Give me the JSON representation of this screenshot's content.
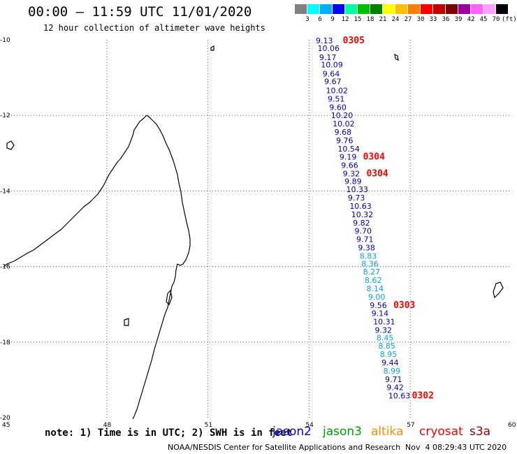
{
  "header": {
    "title": "00:00 – 11:59 UTC 11/01/2020",
    "subtitle": "12 hour collection of altimeter wave heights"
  },
  "legend": {
    "colors": [
      "#808080",
      "#00ffff",
      "#00b0ff",
      "#0000ff",
      "#00ffa0",
      "#00c000",
      "#008000",
      "#ffff00",
      "#ffc000",
      "#ff8000",
      "#ff0000",
      "#c00000",
      "#800000",
      "#a000a0",
      "#ff60ff",
      "#ffa0ff",
      "#000000"
    ],
    "labels": [
      "3",
      "6",
      "9",
      "12",
      "15",
      "18",
      "21",
      "24",
      "27",
      "30",
      "33",
      "36",
      "39",
      "42",
      "45",
      "70",
      "(ft)"
    ]
  },
  "map": {
    "lat_ticks": [
      "-10",
      "-12",
      "-14",
      "-16",
      "-18",
      "-20"
    ],
    "lon_ticks": [
      "45",
      "48",
      "51",
      "54",
      "57",
      "60"
    ],
    "lat_range": [
      -20,
      -10
    ],
    "lon_range": [
      45,
      60
    ],
    "measurements": [
      {
        "lat": -10.02,
        "lon": 54.2,
        "v": "9.13",
        "c": "#0000c0"
      },
      {
        "lat": -10.22,
        "lon": 54.25,
        "v": "10.06",
        "c": "#0000c0"
      },
      {
        "lat": -10.46,
        "lon": 54.3,
        "v": "9.17",
        "c": "#0000c0"
      },
      {
        "lat": -10.66,
        "lon": 54.35,
        "v": "10.09",
        "c": "#0000c0"
      },
      {
        "lat": -10.9,
        "lon": 54.4,
        "v": "9.64",
        "c": "#0000c0"
      },
      {
        "lat": -11.1,
        "lon": 54.45,
        "v": "9.67",
        "c": "#0000c0"
      },
      {
        "lat": -11.34,
        "lon": 54.5,
        "v": "10.02",
        "c": "#0000c0"
      },
      {
        "lat": -11.56,
        "lon": 54.55,
        "v": "9.51",
        "c": "#0000c0"
      },
      {
        "lat": -11.78,
        "lon": 54.6,
        "v": "9.60",
        "c": "#0000c0"
      },
      {
        "lat": -12.0,
        "lon": 54.65,
        "v": "10.20",
        "c": "#0000c0"
      },
      {
        "lat": -12.22,
        "lon": 54.7,
        "v": "10.02",
        "c": "#0000c0"
      },
      {
        "lat": -12.44,
        "lon": 54.75,
        "v": "9.68",
        "c": "#0000c0"
      },
      {
        "lat": -12.66,
        "lon": 54.8,
        "v": "9.76",
        "c": "#0000c0"
      },
      {
        "lat": -12.88,
        "lon": 54.85,
        "v": "10.54",
        "c": "#0000c0"
      },
      {
        "lat": -13.1,
        "lon": 54.9,
        "v": "9.19",
        "c": "#0000c0"
      },
      {
        "lat": -13.32,
        "lon": 54.95,
        "v": "9.66",
        "c": "#0000c0"
      },
      {
        "lat": -13.54,
        "lon": 55.0,
        "v": "9.32",
        "c": "#0000c0"
      },
      {
        "lat": -13.74,
        "lon": 55.05,
        "v": "9.89",
        "c": "#0000c0"
      },
      {
        "lat": -13.96,
        "lon": 55.1,
        "v": "10.33",
        "c": "#0000c0"
      },
      {
        "lat": -14.18,
        "lon": 55.15,
        "v": "9.73",
        "c": "#0000c0"
      },
      {
        "lat": -14.4,
        "lon": 55.2,
        "v": "10.63",
        "c": "#0000c0"
      },
      {
        "lat": -14.62,
        "lon": 55.25,
        "v": "10.32",
        "c": "#0000c0"
      },
      {
        "lat": -14.84,
        "lon": 55.3,
        "v": "9.82",
        "c": "#0000c0"
      },
      {
        "lat": -15.06,
        "lon": 55.35,
        "v": "9.70",
        "c": "#0000c0"
      },
      {
        "lat": -15.28,
        "lon": 55.4,
        "v": "9.71",
        "c": "#0000c0"
      },
      {
        "lat": -15.5,
        "lon": 55.45,
        "v": "9.38",
        "c": "#0000c0"
      },
      {
        "lat": -15.72,
        "lon": 55.5,
        "v": "8.83",
        "c": "#00a8e0"
      },
      {
        "lat": -15.92,
        "lon": 55.55,
        "v": "8.36",
        "c": "#00a8e0"
      },
      {
        "lat": -16.14,
        "lon": 55.6,
        "v": "8.27",
        "c": "#00a8e0"
      },
      {
        "lat": -16.36,
        "lon": 55.65,
        "v": "8.62",
        "c": "#00a8e0"
      },
      {
        "lat": -16.58,
        "lon": 55.7,
        "v": "8.14",
        "c": "#00a8e0"
      },
      {
        "lat": -16.8,
        "lon": 55.75,
        "v": "9.00",
        "c": "#00a8e0"
      },
      {
        "lat": -17.02,
        "lon": 55.8,
        "v": "9.56",
        "c": "#0000c0"
      },
      {
        "lat": -17.24,
        "lon": 55.85,
        "v": "9.14",
        "c": "#0000c0"
      },
      {
        "lat": -17.46,
        "lon": 55.9,
        "v": "10.31",
        "c": "#0000c0"
      },
      {
        "lat": -17.68,
        "lon": 55.95,
        "v": "9.32",
        "c": "#0000c0"
      },
      {
        "lat": -17.88,
        "lon": 56.0,
        "v": "8.45",
        "c": "#00a8e0"
      },
      {
        "lat": -18.1,
        "lon": 56.05,
        "v": "8.85",
        "c": "#00a8e0"
      },
      {
        "lat": -18.32,
        "lon": 56.1,
        "v": "8.95",
        "c": "#00a8e0"
      },
      {
        "lat": -18.54,
        "lon": 56.15,
        "v": "9.44",
        "c": "#0000c0"
      },
      {
        "lat": -18.76,
        "lon": 56.2,
        "v": "8.99",
        "c": "#00a8e0"
      },
      {
        "lat": -18.98,
        "lon": 56.25,
        "v": "9.71",
        "c": "#0000c0"
      },
      {
        "lat": -19.2,
        "lon": 56.3,
        "v": "9.42",
        "c": "#0000c0"
      },
      {
        "lat": -19.42,
        "lon": 56.35,
        "v": "10.63",
        "c": "#0000c0"
      }
    ],
    "times": [
      {
        "lat": -10.02,
        "lon": 55.0,
        "t": "0305"
      },
      {
        "lat": -13.1,
        "lon": 55.6,
        "t": "0304"
      },
      {
        "lat": -13.54,
        "lon": 55.7,
        "t": "0304"
      },
      {
        "lat": -17.02,
        "lon": 56.5,
        "t": "0303"
      },
      {
        "lat": -19.42,
        "lon": 57.05,
        "t": "0302"
      }
    ]
  },
  "footer": {
    "note": "note: 1) Time is in UTC; 2) SWH is in feet",
    "satellites": [
      {
        "name": "jason2",
        "color": "#0000ff"
      },
      {
        "name": "jason3",
        "color": "#00a000"
      },
      {
        "name": "altika",
        "color": "#ff8c00"
      },
      {
        "name": "cryosat",
        "color": "#ff0000"
      },
      {
        "name": "s3a",
        "color": "#a00000"
      }
    ],
    "credit": "NOAA/NESDIS Center for Satellite Applications and Research",
    "timestamp": "Nov  4 08:29:43 UTC 2020"
  }
}
